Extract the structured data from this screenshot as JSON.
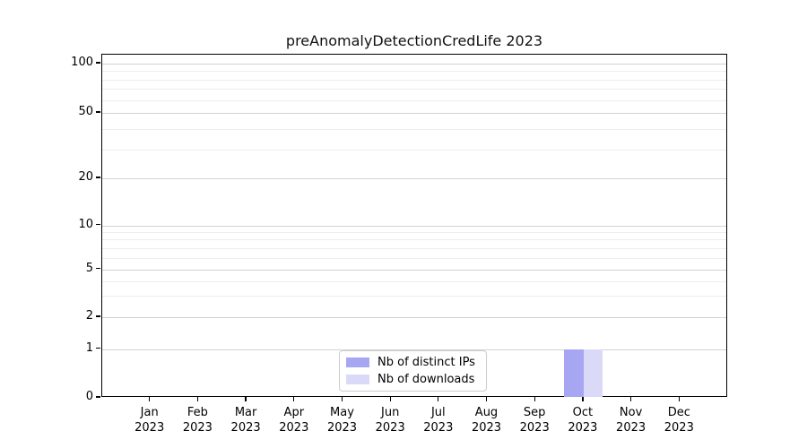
{
  "title": "preAnomalyDetectionCredLife 2023",
  "legend": {
    "items": [
      {
        "label": "Nb of distinct IPs",
        "color": "#a6a6f2"
      },
      {
        "label": "Nb of downloads",
        "color": "#dadaf8"
      }
    ]
  },
  "chart_data": {
    "type": "bar",
    "title": "preAnomalyDetectionCredLife 2023",
    "categories": [
      "Jan 2023",
      "Feb 2023",
      "Mar 2023",
      "Apr 2023",
      "May 2023",
      "Jun 2023",
      "Jul 2023",
      "Aug 2023",
      "Sep 2023",
      "Oct 2023",
      "Nov 2023",
      "Dec 2023"
    ],
    "series": [
      {
        "name": "Nb of distinct IPs",
        "color": "#a6a6f2",
        "values": [
          0,
          0,
          0,
          0,
          0,
          0,
          0,
          0,
          0,
          1,
          0,
          0
        ]
      },
      {
        "name": "Nb of downloads",
        "color": "#dadaf8",
        "values": [
          0,
          0,
          0,
          0,
          0,
          0,
          0,
          0,
          0,
          1,
          0,
          0
        ]
      }
    ],
    "xlabel": "",
    "ylabel": "",
    "yscale": "symlog",
    "y_ticks": [
      0,
      1,
      2,
      5,
      10,
      20,
      50,
      100
    ],
    "y_minor_gridlines": [
      3,
      4,
      6,
      7,
      8,
      9,
      30,
      40,
      60,
      70,
      80,
      90
    ],
    "ylim": [
      0,
      115
    ],
    "grid": "horizontal",
    "legend_position": "lower center"
  }
}
